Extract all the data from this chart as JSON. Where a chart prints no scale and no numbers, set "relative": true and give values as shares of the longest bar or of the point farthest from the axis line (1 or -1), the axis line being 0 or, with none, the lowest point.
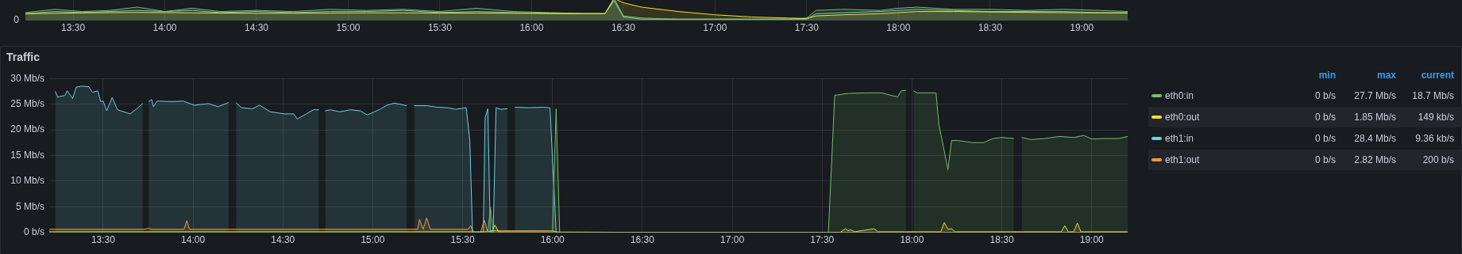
{
  "chart_data": [
    {
      "type": "area",
      "relative": true,
      "grid": "x",
      "tick_labels": "x",
      "annotations": [
        "0"
      ],
      "x": [
        13.24,
        13.4,
        13.55,
        13.7,
        13.85,
        14.0,
        14.15,
        14.3,
        14.5,
        14.7,
        14.9,
        15.1,
        15.3,
        15.5,
        15.7,
        15.9,
        16.1,
        16.3,
        16.4,
        16.45,
        16.5,
        16.6,
        16.8,
        17.0,
        17.2,
        17.4,
        17.5,
        17.55,
        17.7,
        17.9,
        18.0,
        18.1,
        18.3,
        18.5,
        18.7,
        18.9,
        19.1,
        19.25
      ],
      "xlim": [
        13.24,
        19.25
      ],
      "xticks": [
        {
          "value": 13.5,
          "label": "13:30"
        },
        {
          "value": 14,
          "label": "14:00"
        },
        {
          "value": 14.5,
          "label": "14:30"
        },
        {
          "value": 15,
          "label": "15:00"
        },
        {
          "value": 15.5,
          "label": "15:30"
        },
        {
          "value": 16,
          "label": "16:00"
        },
        {
          "value": 16.5,
          "label": "16:30"
        },
        {
          "value": 17,
          "label": "17:00"
        },
        {
          "value": 17.5,
          "label": "17:30"
        },
        {
          "value": 18,
          "label": "18:00"
        },
        {
          "value": 18.5,
          "label": "18:30"
        },
        {
          "value": 19,
          "label": "19:00"
        }
      ],
      "series": [
        {
          "color": "#73bf69",
          "values": [
            0.35,
            0.5,
            0.4,
            0.45,
            0.6,
            0.4,
            0.55,
            0.4,
            0.45,
            0.4,
            0.5,
            0.45,
            0.5,
            0.4,
            0.55,
            0.4,
            0.35,
            0.3,
            0.3,
            1,
            0.2,
            0.1,
            0.05,
            0.05,
            0.05,
            0.05,
            0.1,
            0.45,
            0.5,
            0.45,
            0.55,
            0.6,
            0.5,
            0.5,
            0.45,
            0.5,
            0.45,
            0.4
          ]
        },
        {
          "color": "#6ed0e0",
          "values": [
            0.3,
            0.4,
            0.35,
            0.4,
            0.45,
            0.4,
            0.45,
            0.35,
            0.4,
            0.35,
            0.4,
            0.4,
            0.45,
            0.35,
            0.4,
            0.35,
            0.3,
            0.3,
            0.3,
            0.9,
            0.15,
            0.05,
            0.05,
            0.05,
            0.05,
            0.05,
            0.05,
            0.3,
            0.35,
            0.4,
            0.45,
            0.5,
            0.45,
            0.4,
            0.4,
            0.4,
            0.35,
            0.35
          ]
        },
        {
          "type": "line",
          "color": "#fade2a",
          "values": [
            0.3,
            0.32,
            0.34,
            0.35,
            0.36,
            0.35,
            0.34,
            0.33,
            0.32,
            0.32,
            0.33,
            0.34,
            0.34,
            0.33,
            0.33,
            0.32,
            0.32,
            0.31,
            0.31,
            1,
            0.8,
            0.6,
            0.4,
            0.25,
            0.15,
            0.1,
            0.08,
            0.2,
            0.25,
            0.3,
            0.35,
            0.4,
            0.4,
            0.38,
            0.36,
            0.35,
            0.34,
            0.33
          ]
        }
      ]
    },
    {
      "type": "area",
      "title": "Traffic",
      "grid": true,
      "legend": "right",
      "xlim": [
        13.2,
        19.2
      ],
      "xticks": [
        {
          "value": 13.5,
          "label": "13:30"
        },
        {
          "value": 14,
          "label": "14:00"
        },
        {
          "value": 14.5,
          "label": "14:30"
        },
        {
          "value": 15,
          "label": "15:00"
        },
        {
          "value": 15.5,
          "label": "15:30"
        },
        {
          "value": 16,
          "label": "16:00"
        },
        {
          "value": 16.5,
          "label": "16:30"
        },
        {
          "value": 17,
          "label": "17:00"
        },
        {
          "value": 17.5,
          "label": "17:30"
        },
        {
          "value": 18,
          "label": "18:00"
        },
        {
          "value": 18.5,
          "label": "18:30"
        },
        {
          "value": 19,
          "label": "19:00"
        }
      ],
      "ylim": [
        0,
        30
      ],
      "yticks": [
        {
          "value": 0,
          "label": "0 b/s"
        },
        {
          "value": 5,
          "label": "5 Mb/s"
        },
        {
          "value": 10,
          "label": "10 Mb/s"
        },
        {
          "value": 15,
          "label": "15 Mb/s"
        },
        {
          "value": 20,
          "label": "20 Mb/s"
        },
        {
          "value": 25,
          "label": "25 Mb/s"
        },
        {
          "value": 30,
          "label": "30 Mb/s"
        }
      ],
      "annotations": [
        "min",
        "max",
        "current",
        "0 b/s",
        "27.7 Mb/s",
        "18.7 Mb/s",
        "0 b/s",
        "1.85 Mb/s",
        "149 kb/s",
        "0 b/s",
        "28.4 Mb/s",
        "9.36 kb/s",
        "0 b/s",
        "2.82 Mb/s",
        "200 b/s"
      ],
      "series": [
        {
          "name": "eth0:in",
          "color": "#73bf69",
          "x": [
            13.2,
            15.64,
            15.655,
            15.67,
            16.0,
            16.02,
            16.04,
            17.0,
            17.535,
            17.57,
            17.646,
            17.75,
            17.83,
            17.92,
            17.94,
            17.967,
            17.99,
            18.008,
            18.03,
            18.134,
            18.15,
            18.175,
            18.2,
            18.22,
            18.256,
            18.337,
            18.4,
            18.45,
            18.5,
            18.567,
            18.59,
            18.61,
            18.66,
            18.74,
            18.82,
            18.9,
            18.957,
            19.0,
            19.07,
            19.15,
            19.2
          ],
          "values": [
            0,
            0,
            4.8,
            0,
            0,
            24.1,
            0,
            0,
            0,
            26.7,
            27.1,
            27.2,
            27.2,
            26.4,
            27.6,
            27.7,
            null,
            27.6,
            27.2,
            27.2,
            20.9,
            16.7,
            12.2,
            17.9,
            17.9,
            17.5,
            17.5,
            18.3,
            18.5,
            18.3,
            null,
            18.5,
            18.1,
            18.3,
            18.7,
            18.5,
            18.9,
            18.2,
            18.3,
            18.3,
            18.7
          ]
        },
        {
          "name": "eth0:out",
          "color": "#fade2a",
          "x": [
            13.2,
            15.0,
            15.66,
            15.68,
            15.7,
            16.5,
            17.6,
            17.63,
            17.645,
            17.66,
            17.68,
            17.79,
            17.81,
            18.16,
            18.18,
            18.2,
            18.22,
            18.24,
            18.83,
            18.85,
            18.87,
            18.9,
            18.92,
            18.94,
            19.2
          ],
          "values": [
            0.1,
            0.1,
            0.1,
            1.4,
            0.1,
            0,
            0,
            0.7,
            0.3,
            0.5,
            0.1,
            0.7,
            0.1,
            0.1,
            1.9,
            0.6,
            0.7,
            0.1,
            0.1,
            1.3,
            0.1,
            0.1,
            1.8,
            0.1,
            0.1
          ]
        },
        {
          "name": "eth1:in",
          "color": "#6ed0e0",
          "x": [
            13.233,
            13.247,
            13.26,
            13.287,
            13.3,
            13.33,
            13.35,
            13.378,
            13.42,
            13.44,
            13.47,
            13.486,
            13.5,
            13.52,
            13.55,
            13.58,
            13.65,
            13.68,
            13.72,
            13.735,
            13.753,
            13.77,
            13.78,
            13.8,
            13.885,
            13.945,
            14.006,
            14.087,
            14.138,
            14.198,
            14.22,
            14.239,
            14.27,
            14.33,
            14.37,
            14.43,
            14.51,
            14.56,
            14.58,
            14.63,
            14.67,
            14.7,
            14.72,
            14.735,
            14.765,
            14.816,
            14.876,
            14.93,
            14.97,
            15.04,
            15.08,
            15.12,
            15.19,
            15.21,
            15.23,
            15.3,
            15.36,
            15.42,
            15.46,
            15.52,
            15.54,
            15.555,
            15.615,
            15.625,
            15.64,
            15.654,
            15.67,
            15.686,
            15.71,
            15.75,
            15.77,
            15.79,
            15.87,
            15.945,
            15.986,
            16.02,
            17.0,
            19.2
          ],
          "values": [
            27.5,
            26.4,
            26.5,
            26.7,
            27.6,
            26.1,
            28.3,
            28.5,
            28.4,
            27.3,
            27.6,
            25.5,
            25.6,
            23.7,
            26.3,
            23.9,
            23.1,
            23.9,
            25.1,
            null,
            25.5,
            25.9,
            24.5,
            25.6,
            25.5,
            25.6,
            24.8,
            25.1,
            24.5,
            25.3,
            null,
            25.3,
            24.3,
            24.1,
            24.8,
            23.5,
            23.1,
            23.1,
            22.1,
            23.1,
            23.9,
            23.9,
            null,
            23.7,
            23.9,
            23.5,
            23.9,
            23.7,
            22.9,
            24.0,
            24.8,
            25.2,
            24.7,
            null,
            24.7,
            24.7,
            24.4,
            24.3,
            24.0,
            24.3,
            17.9,
            0,
            0,
            22.3,
            24.1,
            0,
            0,
            24.3,
            24.0,
            24.1,
            null,
            24.4,
            24.3,
            24.4,
            24.3,
            0,
            0,
            0
          ]
        },
        {
          "name": "eth1:out",
          "color": "#ff9830",
          "x": [
            13.2,
            13.73,
            13.75,
            13.77,
            13.95,
            13.966,
            13.98,
            14.5,
            15.25,
            15.26,
            15.28,
            15.3,
            15.32,
            15.53,
            15.545,
            15.56,
            15.6,
            15.62,
            15.64,
            15.66,
            16.0,
            16.03,
            17.0,
            19.2
          ],
          "values": [
            0.6,
            0.6,
            0.8,
            0.6,
            0.6,
            2.3,
            0.6,
            0.6,
            0.6,
            2.5,
            0.6,
            2.8,
            0.6,
            0.6,
            1.3,
            0,
            0,
            2.4,
            0.1,
            0.3,
            0.3,
            0,
            0,
            0
          ]
        }
      ]
    }
  ]
}
